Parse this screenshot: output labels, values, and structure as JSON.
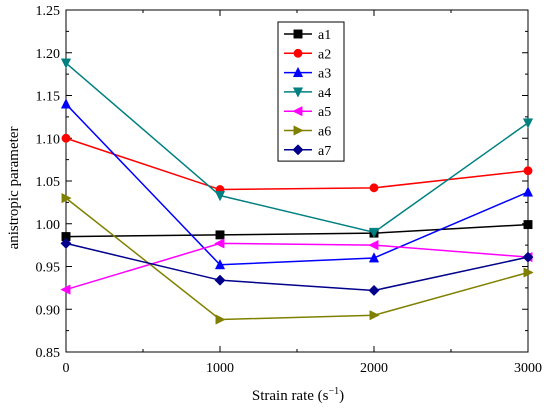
{
  "chart_data": {
    "type": "line",
    "title": "",
    "xlabel": "Strain rate (s",
    "xlabel_sup": "−1",
    "xlabel_close": ")",
    "ylabel": "anistropic parameter",
    "x": [
      0,
      1000,
      2000,
      3000
    ],
    "xlim": [
      0,
      3000
    ],
    "ylim": [
      0.85,
      1.25
    ],
    "xticks": [
      "0",
      "1000",
      "2000",
      "3000"
    ],
    "yticks": [
      "0.85",
      "0.90",
      "0.95",
      "1.00",
      "1.05",
      "1.10",
      "1.15",
      "1.20",
      "1.25"
    ],
    "grid": false,
    "legend_position": "top-center",
    "series": [
      {
        "name": "a1",
        "color": "#000000",
        "marker": "square",
        "values": [
          0.985,
          0.987,
          0.989,
          0.999
        ]
      },
      {
        "name": "a2",
        "color": "#ff0000",
        "marker": "circle",
        "values": [
          1.1,
          1.04,
          1.042,
          1.062
        ]
      },
      {
        "name": "a3",
        "color": "#0000ff",
        "marker": "triangle-up",
        "values": [
          1.14,
          0.952,
          0.96,
          1.037
        ]
      },
      {
        "name": "a4",
        "color": "#008080",
        "marker": "triangle-down",
        "values": [
          1.188,
          1.033,
          0.99,
          1.118
        ]
      },
      {
        "name": "a5",
        "color": "#ff00ff",
        "marker": "triangle-left",
        "values": [
          0.923,
          0.977,
          0.975,
          0.961
        ]
      },
      {
        "name": "a6",
        "color": "#808000",
        "marker": "triangle-right",
        "values": [
          1.03,
          0.888,
          0.893,
          0.943
        ]
      },
      {
        "name": "a7",
        "color": "#00008b",
        "marker": "diamond",
        "values": [
          0.977,
          0.934,
          0.922,
          0.961
        ]
      }
    ]
  }
}
